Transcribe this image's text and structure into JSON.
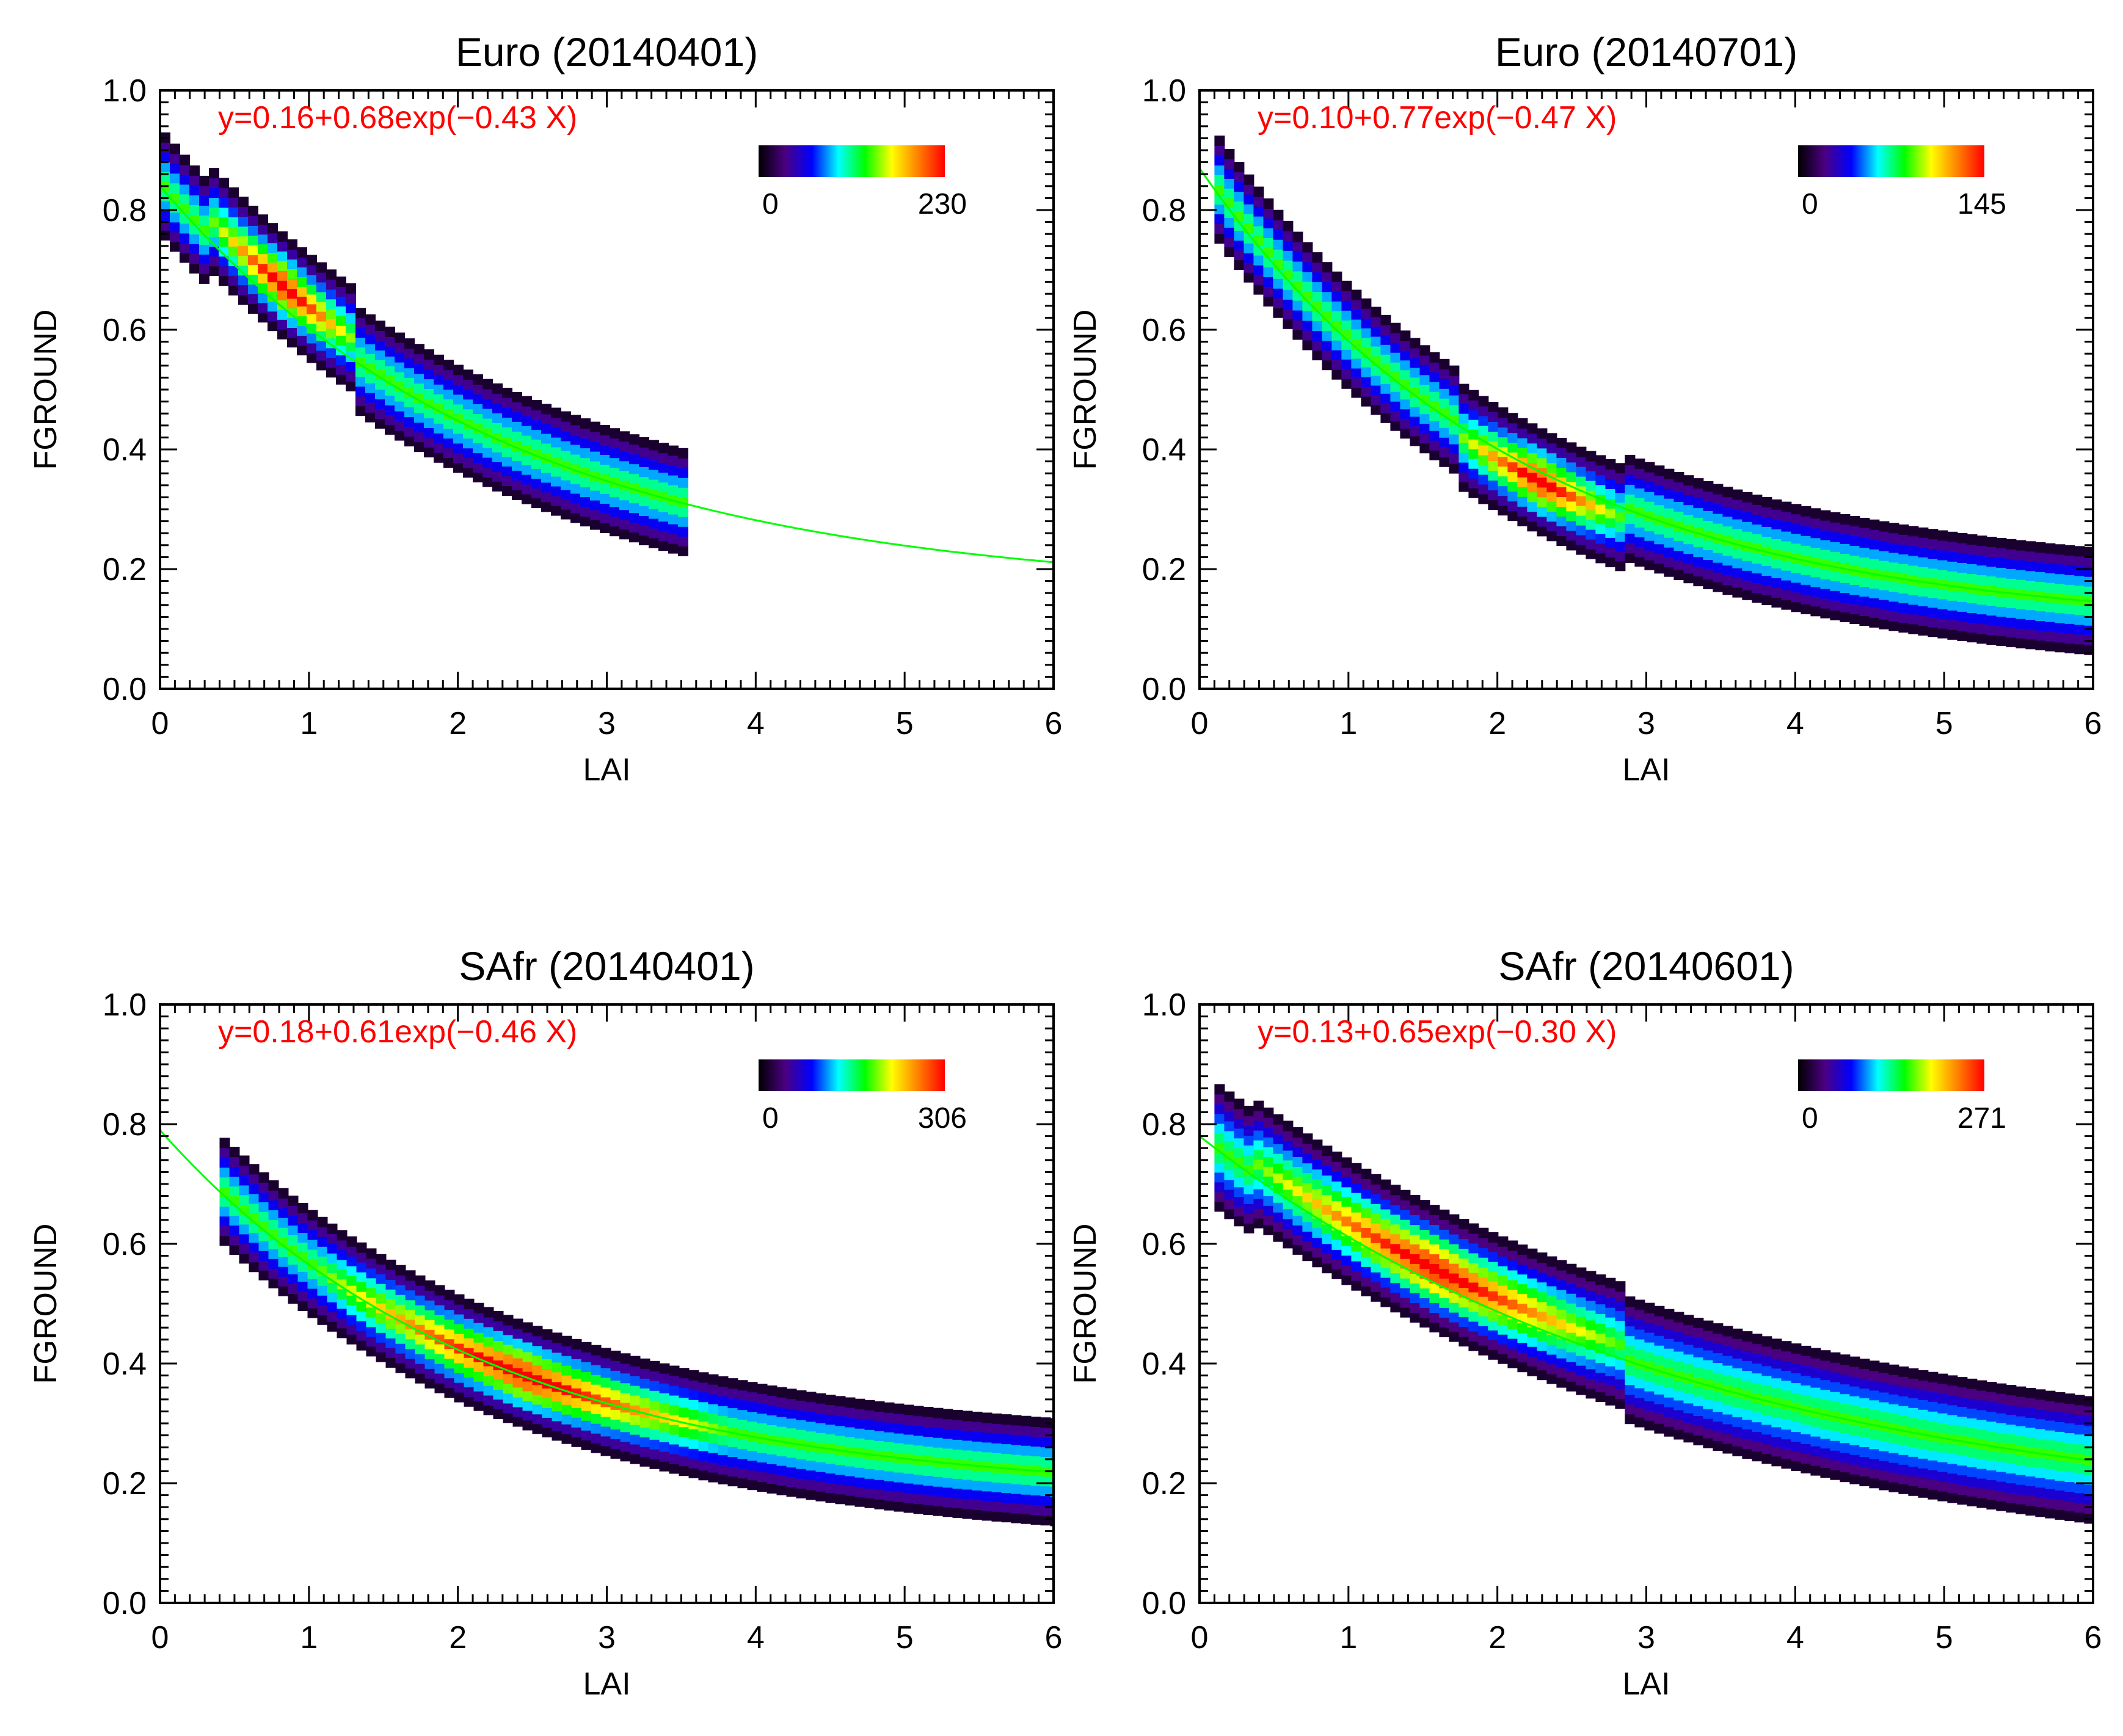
{
  "figure": {
    "colorbar_stops": [
      "#000000",
      "#4b0082",
      "#0000ff",
      "#00ffff",
      "#00ff00",
      "#ffff00",
      "#ff8000",
      "#ff0000"
    ],
    "fit_color": "#00ff00",
    "equation_color": "#ff0000"
  },
  "chart_data": [
    {
      "type": "heatmap",
      "title": "Euro (20140401)",
      "xlabel": "LAI",
      "ylabel": "FGROUND",
      "xlim": [
        0,
        6
      ],
      "ylim": [
        0,
        1
      ],
      "xticks": [
        "0",
        "1",
        "2",
        "3",
        "4",
        "5",
        "6"
      ],
      "yticks": [
        "0.0",
        "0.2",
        "0.4",
        "0.6",
        "0.8",
        "1.0"
      ],
      "equation": "y=0.16+0.68exp(−0.43 X)",
      "fit": {
        "a": 0.16,
        "b": 0.68,
        "c": 0.43
      },
      "colorbar": {
        "min": "0",
        "max": "230"
      },
      "density": {
        "x_range": [
          0,
          3.5
        ],
        "width_cells": 5,
        "core": {
          "x": [
            0.3,
            1.3
          ],
          "offset": 0.03
        }
      }
    },
    {
      "type": "heatmap",
      "title": "Euro (20140701)",
      "xlabel": "LAI",
      "ylabel": "FGROUND",
      "xlim": [
        0,
        6
      ],
      "ylim": [
        0,
        1
      ],
      "xticks": [
        "0",
        "1",
        "2",
        "3",
        "4",
        "5",
        "6"
      ],
      "yticks": [
        "0.0",
        "0.2",
        "0.4",
        "0.6",
        "0.8",
        "1.0"
      ],
      "equation": "y=0.10+0.77exp(−0.47 X)",
      "fit": {
        "a": 0.1,
        "b": 0.77,
        "c": 0.47
      },
      "colorbar": {
        "min": "0",
        "max": "145"
      },
      "density": {
        "x_range": [
          0.1,
          6
        ],
        "width_cells": 5,
        "core": {
          "x": [
            1.7,
            2.8
          ],
          "offset": -0.02
        }
      }
    },
    {
      "type": "heatmap",
      "title": "SAfr (20140401)",
      "xlabel": "LAI",
      "ylabel": "FGROUND",
      "xlim": [
        0,
        6
      ],
      "ylim": [
        0,
        1
      ],
      "xticks": [
        "0",
        "1",
        "2",
        "3",
        "4",
        "5",
        "6"
      ],
      "yticks": [
        "0.0",
        "0.2",
        "0.4",
        "0.6",
        "0.8",
        "1.0"
      ],
      "equation": "y=0.18+0.61exp(−0.46 X)",
      "fit": {
        "a": 0.18,
        "b": 0.61,
        "c": 0.46
      },
      "colorbar": {
        "min": "0",
        "max": "306"
      },
      "density": {
        "x_range": [
          0.4,
          6
        ],
        "width_cells": 5,
        "core": {
          "x": [
            1.0,
            3.8
          ],
          "offset": 0.0
        }
      }
    },
    {
      "type": "heatmap",
      "title": "SAfr (20140601)",
      "xlabel": "LAI",
      "ylabel": "FGROUND",
      "xlim": [
        0,
        6
      ],
      "ylim": [
        0,
        1
      ],
      "xticks": [
        "0",
        "1",
        "2",
        "3",
        "4",
        "5",
        "6"
      ],
      "yticks": [
        "0.0",
        "0.2",
        "0.4",
        "0.6",
        "0.8",
        "1.0"
      ],
      "equation": "y=0.13+0.65exp(−0.30 X)",
      "fit": {
        "a": 0.13,
        "b": 0.65,
        "c": 0.3
      },
      "colorbar": {
        "min": "0",
        "max": "271"
      },
      "density": {
        "x_range": [
          0.1,
          6
        ],
        "width_cells": 6,
        "core": {
          "x": [
            0.3,
            2.8
          ],
          "offset": 0.02
        }
      }
    }
  ]
}
